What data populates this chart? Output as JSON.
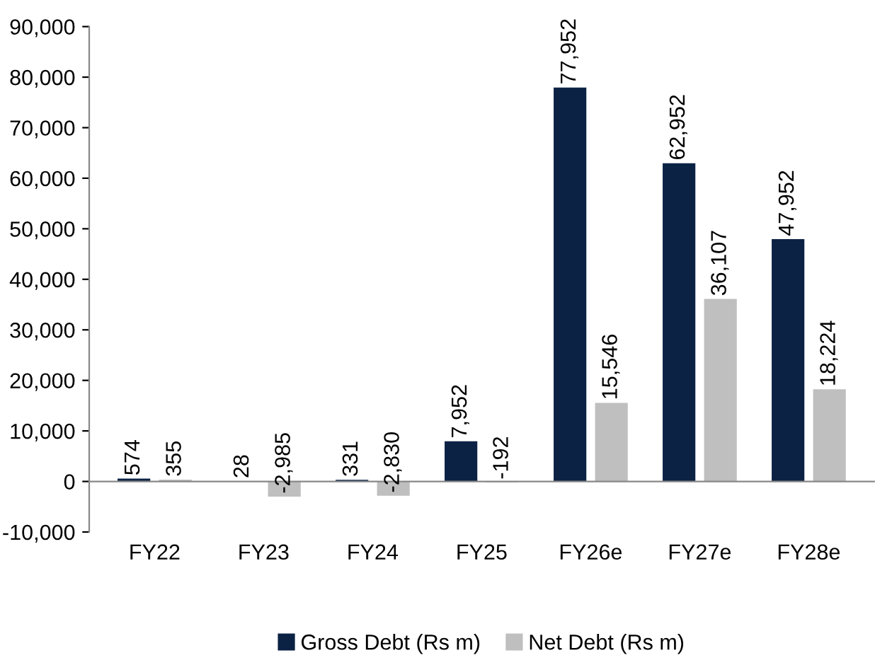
{
  "chart_data": {
    "type": "bar",
    "categories": [
      "FY22",
      "FY23",
      "FY24",
      "FY25",
      "FY26e",
      "FY27e",
      "FY28e"
    ],
    "series": [
      {
        "name": "Gross Debt (Rs m)",
        "color": "#0b2244",
        "values": [
          574,
          28,
          331,
          7952,
          77952,
          62952,
          47952
        ],
        "value_labels": [
          "574",
          "28",
          "331",
          "7,952",
          "77,952",
          "62,952",
          "47,952"
        ]
      },
      {
        "name": "Net Debt (Rs m)",
        "color": "#bfbfbf",
        "values": [
          355,
          -2985,
          -2830,
          -192,
          15546,
          36107,
          18224
        ],
        "value_labels": [
          "355",
          "-2,985",
          "-2,830",
          "-192",
          "15,546",
          "36,107",
          "18,224"
        ]
      }
    ],
    "ylim": [
      -10000,
      90000
    ],
    "yticks": [
      {
        "value": -10000,
        "label": "-10,000"
      },
      {
        "value": 0,
        "label": "0"
      },
      {
        "value": 10000,
        "label": "10,000"
      },
      {
        "value": 20000,
        "label": "20,000"
      },
      {
        "value": 30000,
        "label": "30,000"
      },
      {
        "value": 40000,
        "label": "40,000"
      },
      {
        "value": 50000,
        "label": "50,000"
      },
      {
        "value": 60000,
        "label": "60,000"
      },
      {
        "value": 70000,
        "label": "70,000"
      },
      {
        "value": 80000,
        "label": "80,000"
      },
      {
        "value": 90000,
        "label": "90,000"
      }
    ],
    "legend": "bottom"
  }
}
